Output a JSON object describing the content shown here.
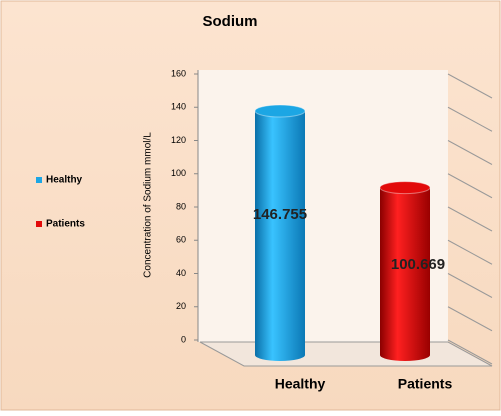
{
  "chart_data": {
    "type": "bar3d",
    "title": "Sodium",
    "y_label": "Concentration of Sodium  mmol/L",
    "categories": [
      "Healthy",
      "Patients"
    ],
    "values": [
      146.755,
      100.669
    ],
    "colors": [
      "#1ca6e4",
      "#e20a0a"
    ],
    "ylim": [
      0,
      160
    ],
    "yticks": [
      0,
      20,
      40,
      60,
      80,
      100,
      120,
      140,
      160
    ],
    "grid": true,
    "legend": "left"
  }
}
